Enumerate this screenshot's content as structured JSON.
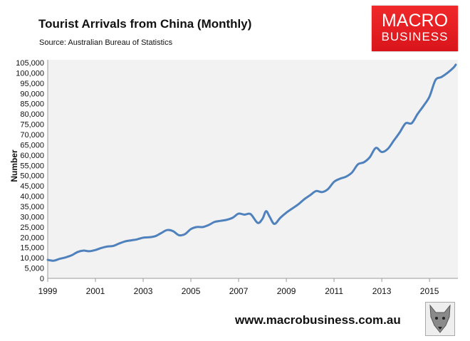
{
  "header": {
    "title": "Tourist Arrivals from China (Monthly)",
    "subtitle": "Source: Australian Bureau of Statistics"
  },
  "logo": {
    "line1": "MACRO",
    "line2": "BUSINESS",
    "color": "#e31e24"
  },
  "footer": {
    "url": "www.macrobusiness.com.au",
    "icon": "wolf-icon"
  },
  "chart_data": {
    "type": "line",
    "title": "Tourist Arrivals from China (Monthly)",
    "subtitle": "Source: Australian Bureau of Statistics",
    "xlabel": "",
    "ylabel": "Number",
    "xlim": [
      1999,
      2016.1
    ],
    "ylim": [
      0,
      105000
    ],
    "xticks": [
      "1999",
      "2001",
      "2003",
      "2005",
      "2007",
      "2009",
      "2011",
      "2013",
      "2015"
    ],
    "yticks": [
      "0",
      "5,000",
      "10,000",
      "15,000",
      "20,000",
      "25,000",
      "30,000",
      "35,000",
      "40,000",
      "45,000",
      "50,000",
      "55,000",
      "60,000",
      "65,000",
      "70,000",
      "75,000",
      "80,000",
      "85,000",
      "90,000",
      "95,000",
      "100,000",
      "105,000"
    ],
    "grid": false,
    "line_color": "#4f81bd",
    "background": "#f2f2f2",
    "x": [
      1999,
      1999.25,
      1999.5,
      1999.75,
      2000,
      2000.25,
      2000.5,
      2000.75,
      2001,
      2001.25,
      2001.5,
      2001.75,
      2002,
      2002.25,
      2002.5,
      2002.75,
      2003,
      2003.25,
      2003.5,
      2003.75,
      2004,
      2004.25,
      2004.5,
      2004.75,
      2005,
      2005.25,
      2005.5,
      2005.75,
      2006,
      2006.25,
      2006.5,
      2006.75,
      2007,
      2007.25,
      2007.5,
      2007.8,
      2008,
      2008.15,
      2008.3,
      2008.5,
      2008.75,
      2009,
      2009.25,
      2009.5,
      2009.75,
      2010,
      2010.25,
      2010.5,
      2010.75,
      2011,
      2011.25,
      2011.5,
      2011.75,
      2012,
      2012.25,
      2012.5,
      2012.75,
      2013,
      2013.25,
      2013.5,
      2013.75,
      2014,
      2014.25,
      2014.5,
      2014.75,
      2015,
      2015.25,
      2015.5,
      2015.75,
      2016,
      2016.1
    ],
    "series": [
      {
        "values": [
          9000,
          8600,
          9500,
          10200,
          11200,
          12800,
          13500,
          13200,
          13800,
          14800,
          15500,
          15800,
          17000,
          18000,
          18500,
          19000,
          19800,
          20000,
          20500,
          22000,
          23500,
          23000,
          21000,
          21500,
          24000,
          25000,
          25000,
          26000,
          27500,
          28000,
          28500,
          29500,
          31500,
          31000,
          31300,
          27000,
          29000,
          32700,
          30000,
          26500,
          29500,
          32000,
          34000,
          36000,
          38500,
          40500,
          42500,
          42000,
          43500,
          47000,
          48500,
          49500,
          51500,
          55500,
          56500,
          59000,
          63500,
          61500,
          63000,
          67000,
          71000,
          75500,
          75500,
          80000,
          84000,
          88500,
          96500,
          98000,
          100000,
          102500,
          104000
        ]
      }
    ]
  }
}
